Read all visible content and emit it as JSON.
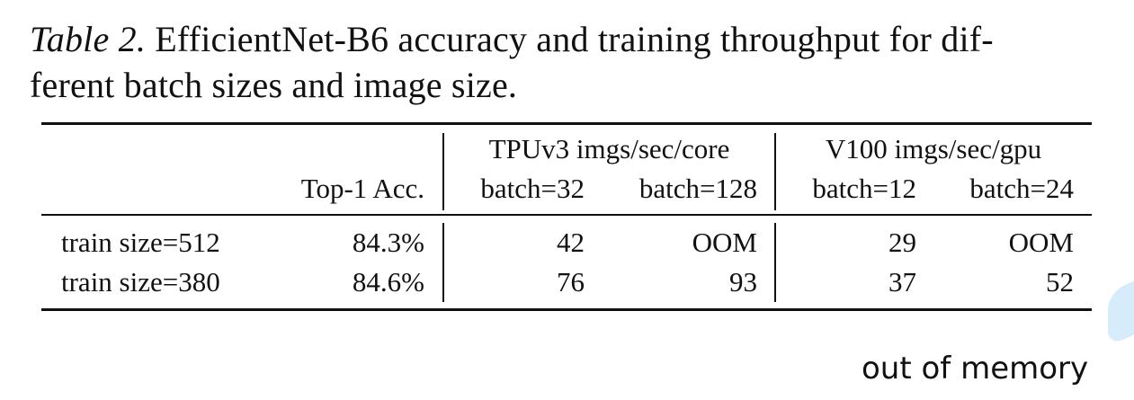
{
  "caption": {
    "label": "Table 2.",
    "line1_text": "EfficientNet-B6 accuracy and training throughput for dif-",
    "line2_text": "ferent batch sizes and image size."
  },
  "table": {
    "group_headers": {
      "tpu": "TPUv3 imgs/sec/core",
      "v100": "V100 imgs/sec/gpu"
    },
    "column_headers": {
      "top1": "Top-1 Acc.",
      "tpu_b32": "batch=32",
      "tpu_b128": "batch=128",
      "v100_b12": "batch=12",
      "v100_b24": "batch=24"
    },
    "rows": [
      {
        "label": "train size=512",
        "top1": "84.3%",
        "tpu_b32": "42",
        "tpu_b128": "OOM",
        "v100_b12": "29",
        "v100_b24": "OOM"
      },
      {
        "label": "train size=380",
        "top1": "84.6%",
        "tpu_b32": "76",
        "tpu_b128": "93",
        "v100_b12": "37",
        "v100_b24": "52"
      }
    ]
  },
  "annotation": {
    "text": "out of memory"
  }
}
